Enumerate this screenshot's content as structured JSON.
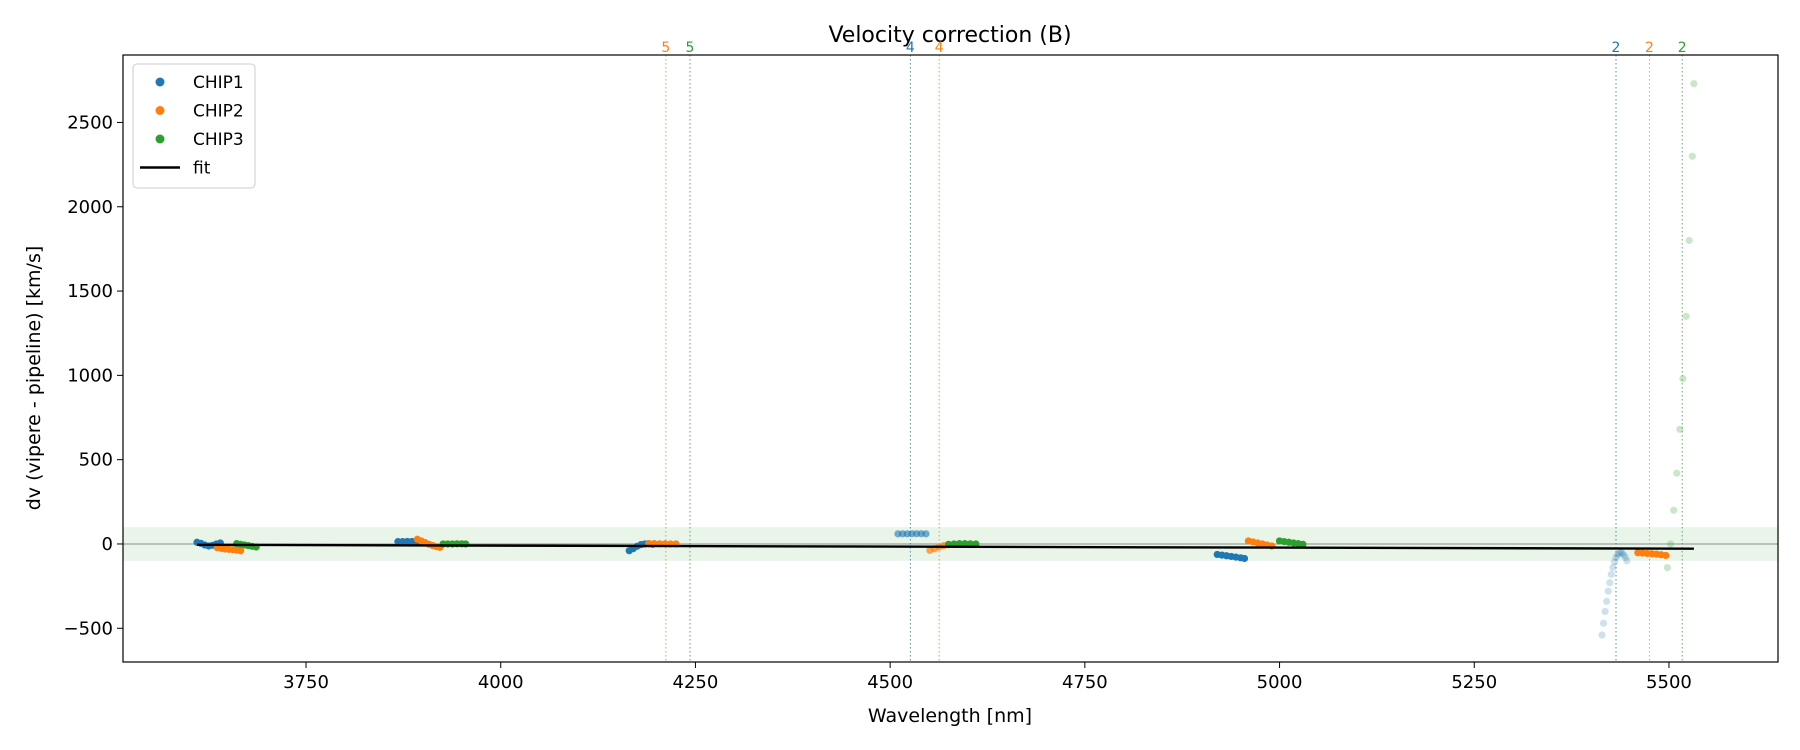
{
  "chart_data": {
    "type": "scatter",
    "title": "Velocity correction (B)",
    "xlabel": "Wavelength [nm]",
    "ylabel": "dv (vipere - pipeline) [km/s]",
    "xlim": [
      3515,
      5640
    ],
    "ylim": [
      -700,
      2900
    ],
    "xticks": [
      3750,
      4000,
      4250,
      4500,
      4750,
      5000,
      5250,
      5500
    ],
    "yticks": [
      -500,
      0,
      500,
      1000,
      1500,
      2000,
      2500
    ],
    "xtick_labels": [
      "3750",
      "4000",
      "4250",
      "4500",
      "4750",
      "5000",
      "5250",
      "5500"
    ],
    "ytick_labels": [
      "−500",
      "0",
      "500",
      "1000",
      "1500",
      "2000",
      "2500"
    ],
    "grid": false,
    "legend_position": "top-left",
    "band": {
      "y": [
        -100,
        100
      ],
      "color": "#2ca02c"
    },
    "zero_line": 0,
    "colors": {
      "CHIP1": "#1f77b4",
      "CHIP2": "#ff7f0e",
      "CHIP3": "#2ca02c",
      "fit": "#000000"
    },
    "legend": [
      {
        "name": "CHIP1",
        "kind": "marker",
        "color": "#1f77b4"
      },
      {
        "name": "CHIP2",
        "kind": "marker",
        "color": "#ff7f0e"
      },
      {
        "name": "CHIP3",
        "kind": "marker",
        "color": "#2ca02c"
      },
      {
        "name": "fit",
        "kind": "line",
        "color": "#000000"
      }
    ],
    "fit": {
      "name": "fit",
      "x": [
        3610,
        5532
      ],
      "y": [
        -5,
        -28
      ]
    },
    "order_markers": [
      {
        "label": "5",
        "x": 4212,
        "color": "#ff7f0e"
      },
      {
        "label": "5",
        "x": 4243,
        "color": "#2ca02c"
      },
      {
        "label": "4",
        "x": 4526,
        "color": "#1f77b4"
      },
      {
        "label": "4",
        "x": 4563,
        "color": "#ff7f0e"
      },
      {
        "label": "2",
        "x": 5432,
        "color": "#1f77b4"
      },
      {
        "label": "2",
        "x": 5475,
        "color": "#ff7f0e"
      },
      {
        "label": "2",
        "x": 5517,
        "color": "#2ca02c"
      }
    ],
    "series": [
      {
        "name": "CHIP1",
        "color": "#1f77b4",
        "opacity": 1.0,
        "x": [
          3610,
          3615,
          3620,
          3625,
          3630,
          3635,
          3640
        ],
        "y": [
          10,
          4,
          -6,
          -12,
          -8,
          0,
          6
        ]
      },
      {
        "name": "CHIP2",
        "color": "#ff7f0e",
        "opacity": 1.0,
        "x": [
          3636,
          3641,
          3646,
          3651,
          3656,
          3661,
          3666
        ],
        "y": [
          -22,
          -26,
          -30,
          -32,
          -34,
          -36,
          -40
        ]
      },
      {
        "name": "CHIP3",
        "color": "#2ca02c",
        "opacity": 1.0,
        "x": [
          3661,
          3666,
          3671,
          3676,
          3681,
          3686
        ],
        "y": [
          2,
          -2,
          -6,
          -10,
          -14,
          -18
        ]
      },
      {
        "name": "CHIP1",
        "color": "#1f77b4",
        "opacity": 1.0,
        "x": [
          3868,
          3874,
          3880,
          3886,
          3892,
          3898
        ],
        "y": [
          14,
          14,
          15,
          15,
          15,
          14
        ]
      },
      {
        "name": "CHIP2",
        "color": "#ff7f0e",
        "opacity": 1.0,
        "x": [
          3893,
          3898,
          3903,
          3908,
          3913,
          3918,
          3922
        ],
        "y": [
          28,
          18,
          8,
          -2,
          -10,
          -16,
          -20
        ]
      },
      {
        "name": "CHIP3",
        "color": "#2ca02c",
        "opacity": 1.0,
        "x": [
          3926,
          3932,
          3938,
          3944,
          3950,
          3955
        ],
        "y": [
          0,
          0,
          0,
          1,
          1,
          0
        ]
      },
      {
        "name": "CHIP1",
        "color": "#1f77b4",
        "opacity": 1.0,
        "x": [
          4165,
          4170,
          4175,
          4180,
          4185,
          4190,
          4195
        ],
        "y": [
          -40,
          -28,
          -14,
          -4,
          0,
          2,
          -2
        ]
      },
      {
        "name": "CHIP2",
        "color": "#ff7f0e",
        "opacity": 1.0,
        "x": [
          4190,
          4197,
          4204,
          4211,
          4218,
          4225
        ],
        "y": [
          2,
          2,
          1,
          1,
          0,
          0
        ]
      },
      {
        "name": "CHIP1",
        "color": "#1f77b4",
        "opacity": 0.6,
        "x": [
          4510,
          4516,
          4522,
          4528,
          4534,
          4540,
          4546
        ],
        "y": [
          60,
          60,
          60,
          61,
          61,
          61,
          60
        ]
      },
      {
        "name": "CHIP2",
        "color": "#ff7f0e",
        "opacity": 0.7,
        "x": [
          4551,
          4557,
          4563,
          4569,
          4575
        ],
        "y": [
          -38,
          -28,
          -18,
          -10,
          -4
        ]
      },
      {
        "name": "CHIP3",
        "color": "#2ca02c",
        "opacity": 1.0,
        "x": [
          4575,
          4582,
          4589,
          4596,
          4603,
          4610
        ],
        "y": [
          -2,
          0,
          2,
          2,
          1,
          0
        ]
      },
      {
        "name": "CHIP1",
        "color": "#1f77b4",
        "opacity": 1.0,
        "x": [
          4920,
          4926,
          4932,
          4938,
          4944,
          4950,
          4955
        ],
        "y": [
          -62,
          -66,
          -70,
          -74,
          -78,
          -82,
          -86
        ]
      },
      {
        "name": "CHIP2",
        "color": "#ff7f0e",
        "opacity": 1.0,
        "x": [
          4960,
          4966,
          4972,
          4978,
          4984,
          4990
        ],
        "y": [
          18,
          12,
          6,
          0,
          -6,
          -12
        ]
      },
      {
        "name": "CHIP3",
        "color": "#2ca02c",
        "opacity": 1.0,
        "x": [
          5000,
          5006,
          5012,
          5018,
          5024,
          5030
        ],
        "y": [
          18,
          14,
          10,
          6,
          2,
          -2
        ]
      },
      {
        "name": "CHIP1",
        "color": "#1f77b4",
        "opacity": 0.22,
        "x": [
          5414,
          5416,
          5418,
          5420,
          5422,
          5424,
          5426,
          5428,
          5430,
          5432,
          5434,
          5436,
          5438,
          5440,
          5442,
          5444,
          5446
        ],
        "y": [
          -540,
          -470,
          -400,
          -340,
          -280,
          -230,
          -180,
          -140,
          -105,
          -80,
          -65,
          -55,
          -50,
          -55,
          -65,
          -80,
          -100
        ]
      },
      {
        "name": "CHIP2",
        "color": "#ff7f0e",
        "opacity": 1.0,
        "x": [
          5460,
          5466,
          5472,
          5478,
          5484,
          5490,
          5496
        ],
        "y": [
          -52,
          -54,
          -56,
          -58,
          -60,
          -64,
          -68
        ]
      },
      {
        "name": "CHIP3",
        "color": "#2ca02c",
        "opacity": 0.25,
        "x": [
          5498,
          5502,
          5506,
          5510,
          5514,
          5518,
          5522,
          5526,
          5530,
          5532
        ],
        "y": [
          -140,
          0,
          200,
          420,
          680,
          980,
          1350,
          1800,
          2300,
          2730
        ]
      }
    ]
  }
}
